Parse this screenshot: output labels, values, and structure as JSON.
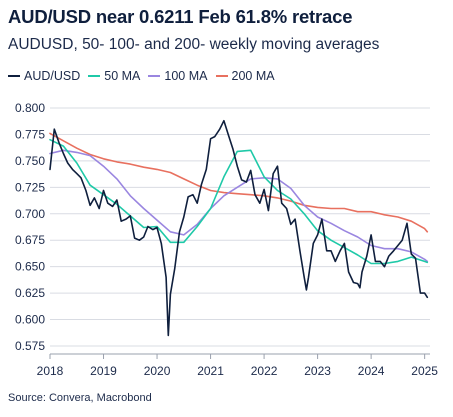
{
  "header": {
    "title": "AUD/USD near 0.6211 Feb 61.8% retrace",
    "subtitle": "AUDUSD, 50- 100- and 200- weekly moving averages"
  },
  "footer": {
    "source": "Source: Convera, Macrobond"
  },
  "colors": {
    "audusd": "#0f1f3d",
    "ma50": "#1fc9a8",
    "ma100": "#9a86e0",
    "ma200": "#e8705f",
    "grid": "#d9dce3"
  },
  "chart_data": {
    "type": "line",
    "title": "AUD/USD near 0.6211 Feb 61.8% retrace",
    "subtitle": "AUDUSD, 50- 100- and 200- weekly moving averages",
    "legend_position": "top",
    "grid": "horizontal",
    "xlim": [
      2018.0,
      2025.1
    ],
    "ylim": [
      0.575,
      0.8
    ],
    "x_ticks": [
      "2018",
      "2019",
      "2020",
      "2021",
      "2022",
      "2023",
      "2024",
      "2025"
    ],
    "y_ticks": [
      "0.800",
      "0.775",
      "0.750",
      "0.725",
      "0.700",
      "0.675",
      "0.650",
      "0.625",
      "0.600",
      "0.575"
    ],
    "series": [
      {
        "name": "AUD/USD",
        "x": [
          2018.0,
          2018.08,
          2018.17,
          2018.25,
          2018.33,
          2018.42,
          2018.5,
          2018.58,
          2018.67,
          2018.75,
          2018.83,
          2018.92,
          2019.0,
          2019.08,
          2019.17,
          2019.25,
          2019.33,
          2019.42,
          2019.5,
          2019.58,
          2019.67,
          2019.75,
          2019.83,
          2019.92,
          2020.0,
          2020.08,
          2020.17,
          2020.21,
          2020.25,
          2020.33,
          2020.42,
          2020.5,
          2020.58,
          2020.67,
          2020.75,
          2020.83,
          2020.92,
          2021.0,
          2021.08,
          2021.17,
          2021.25,
          2021.33,
          2021.42,
          2021.5,
          2021.58,
          2021.67,
          2021.75,
          2021.83,
          2021.92,
          2022.0,
          2022.08,
          2022.17,
          2022.25,
          2022.33,
          2022.42,
          2022.5,
          2022.58,
          2022.67,
          2022.75,
          2022.79,
          2022.83,
          2022.92,
          2023.0,
          2023.08,
          2023.17,
          2023.25,
          2023.33,
          2023.42,
          2023.5,
          2023.58,
          2023.67,
          2023.75,
          2023.79,
          2023.83,
          2023.92,
          2024.0,
          2024.08,
          2024.17,
          2024.25,
          2024.33,
          2024.42,
          2024.5,
          2024.58,
          2024.67,
          2024.75,
          2024.83,
          2024.92,
          2025.0,
          2025.05
        ],
        "values": [
          0.742,
          0.78,
          0.767,
          0.757,
          0.748,
          0.742,
          0.738,
          0.734,
          0.722,
          0.708,
          0.715,
          0.705,
          0.722,
          0.71,
          0.707,
          0.713,
          0.693,
          0.695,
          0.698,
          0.677,
          0.675,
          0.678,
          0.688,
          0.685,
          0.687,
          0.672,
          0.64,
          0.585,
          0.624,
          0.648,
          0.683,
          0.697,
          0.716,
          0.718,
          0.71,
          0.728,
          0.742,
          0.771,
          0.773,
          0.78,
          0.788,
          0.775,
          0.761,
          0.745,
          0.732,
          0.73,
          0.741,
          0.718,
          0.71,
          0.723,
          0.703,
          0.738,
          0.745,
          0.71,
          0.705,
          0.69,
          0.695,
          0.665,
          0.64,
          0.628,
          0.64,
          0.672,
          0.68,
          0.695,
          0.665,
          0.665,
          0.655,
          0.665,
          0.672,
          0.645,
          0.635,
          0.634,
          0.63,
          0.645,
          0.66,
          0.68,
          0.655,
          0.655,
          0.65,
          0.66,
          0.665,
          0.67,
          0.675,
          0.691,
          0.662,
          0.658,
          0.625,
          0.625,
          0.621
        ]
      },
      {
        "name": "50 MA",
        "x": [
          2018.0,
          2018.25,
          2018.5,
          2018.75,
          2019.0,
          2019.25,
          2019.5,
          2019.75,
          2020.0,
          2020.25,
          2020.5,
          2020.75,
          2021.0,
          2021.25,
          2021.5,
          2021.75,
          2022.0,
          2022.25,
          2022.5,
          2022.75,
          2023.0,
          2023.25,
          2023.5,
          2023.75,
          2024.0,
          2024.25,
          2024.5,
          2024.75,
          2025.0,
          2025.05
        ],
        "values": [
          0.77,
          0.764,
          0.748,
          0.727,
          0.718,
          0.709,
          0.698,
          0.687,
          0.688,
          0.673,
          0.673,
          0.688,
          0.705,
          0.735,
          0.759,
          0.76,
          0.735,
          0.722,
          0.714,
          0.7,
          0.684,
          0.675,
          0.668,
          0.661,
          0.653,
          0.653,
          0.655,
          0.659,
          0.655,
          0.654
        ]
      },
      {
        "name": "100 MA",
        "x": [
          2018.0,
          2018.25,
          2018.5,
          2018.75,
          2019.0,
          2019.25,
          2019.5,
          2019.75,
          2020.0,
          2020.25,
          2020.5,
          2020.75,
          2021.0,
          2021.25,
          2021.5,
          2021.75,
          2022.0,
          2022.25,
          2022.5,
          2022.75,
          2023.0,
          2023.25,
          2023.5,
          2023.75,
          2024.0,
          2024.25,
          2024.5,
          2024.75,
          2025.0,
          2025.05
        ],
        "values": [
          0.757,
          0.76,
          0.758,
          0.755,
          0.745,
          0.733,
          0.717,
          0.705,
          0.694,
          0.683,
          0.68,
          0.69,
          0.705,
          0.717,
          0.725,
          0.733,
          0.734,
          0.733,
          0.724,
          0.708,
          0.697,
          0.691,
          0.684,
          0.678,
          0.67,
          0.667,
          0.667,
          0.664,
          0.657,
          0.655
        ]
      },
      {
        "name": "200 MA",
        "x": [
          2018.0,
          2018.25,
          2018.5,
          2018.75,
          2019.0,
          2019.25,
          2019.5,
          2019.75,
          2020.0,
          2020.25,
          2020.5,
          2020.75,
          2021.0,
          2021.25,
          2021.5,
          2021.75,
          2022.0,
          2022.25,
          2022.5,
          2022.75,
          2023.0,
          2023.25,
          2023.5,
          2023.75,
          2024.0,
          2024.25,
          2024.5,
          2024.75,
          2025.0,
          2025.05
        ],
        "values": [
          0.776,
          0.769,
          0.762,
          0.756,
          0.752,
          0.749,
          0.747,
          0.744,
          0.742,
          0.739,
          0.733,
          0.727,
          0.722,
          0.72,
          0.719,
          0.718,
          0.717,
          0.715,
          0.712,
          0.708,
          0.706,
          0.705,
          0.705,
          0.702,
          0.702,
          0.699,
          0.697,
          0.693,
          0.686,
          0.683
        ]
      }
    ]
  }
}
